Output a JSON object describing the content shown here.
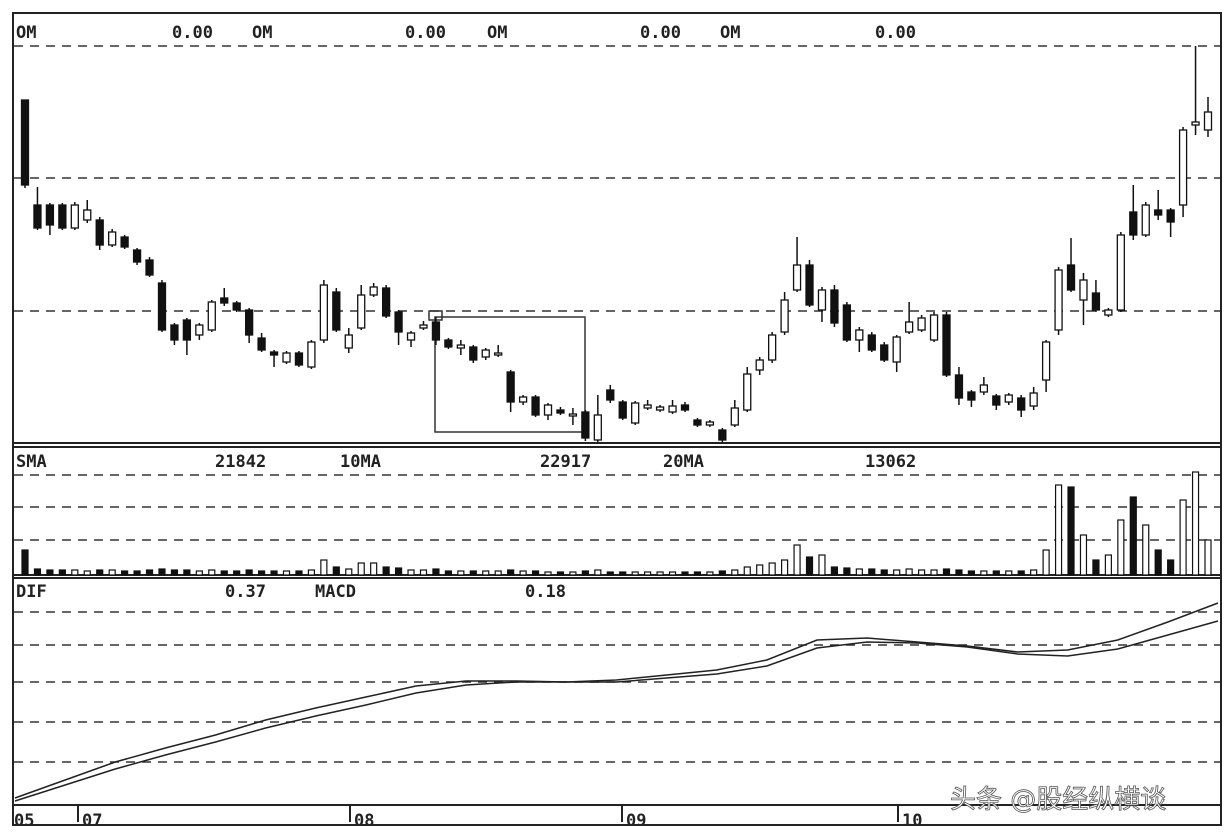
{
  "chart_data": [
    {
      "type": "candlestick",
      "header": [
        "OM",
        "0.00",
        "OM",
        "0.00",
        "OM",
        "0.00",
        "OM",
        "0.00"
      ],
      "ylim": [
        0,
        429
      ],
      "open": [
        343,
        238,
        238,
        238,
        215,
        223,
        223,
        198,
        206,
        193,
        183,
        160,
        118,
        123,
        108,
        113,
        145,
        140,
        133,
        105,
        91,
        81,
        90,
        76,
        103,
        151,
        95,
        115,
        148,
        155,
        131,
        103,
        115,
        121,
        103,
        95,
        96,
        86,
        88,
        71,
        41,
        46,
        28,
        33,
        27,
        31,
        3,
        53,
        41,
        20,
        35,
        33,
        31,
        38,
        23,
        18,
        13,
        18,
        33,
        73,
        83,
        111,
        153,
        178,
        133,
        153,
        138,
        103,
        108,
        98,
        81,
        111,
        113,
        103,
        128,
        68,
        51,
        51,
        47,
        41,
        45,
        37,
        63,
        113,
        178,
        143,
        150,
        128,
        133,
        231,
        208,
        233,
        233,
        238,
        318,
        313
      ],
      "high": [
        343,
        256,
        240,
        240,
        241,
        243,
        226,
        214,
        208,
        195,
        186,
        163,
        120,
        125,
        120,
        143,
        155,
        142,
        135,
        110,
        93,
        92,
        92,
        103,
        163,
        155,
        115,
        158,
        160,
        158,
        133,
        112,
        122,
        126,
        105,
        103,
        98,
        95,
        98,
        73,
        48,
        48,
        40,
        36,
        35,
        33,
        48,
        58,
        43,
        42,
        43,
        38,
        43,
        41,
        25,
        23,
        15,
        43,
        76,
        86,
        111,
        151,
        206,
        183,
        156,
        158,
        141,
        116,
        111,
        101,
        108,
        141,
        128,
        131,
        131,
        76,
        53,
        66,
        49,
        50,
        48,
        56,
        103,
        176,
        205,
        170,
        163,
        135,
        211,
        258,
        241,
        253,
        235,
        316,
        397,
        346
      ],
      "low": [
        255,
        213,
        208,
        213,
        213,
        220,
        193,
        196,
        194,
        178,
        166,
        111,
        98,
        88,
        103,
        111,
        137,
        131,
        100,
        91,
        76,
        79,
        76,
        74,
        100,
        111,
        90,
        113,
        146,
        125,
        98,
        96,
        113,
        98,
        94,
        88,
        80,
        83,
        86,
        31,
        38,
        26,
        23,
        28,
        18,
        2,
        1,
        40,
        23,
        18,
        33,
        31,
        29,
        31,
        16,
        16,
        1,
        16,
        31,
        68,
        80,
        108,
        151,
        136,
        121,
        116,
        101,
        91,
        91,
        81,
        71,
        109,
        111,
        101,
        66,
        38,
        36,
        48,
        33,
        38,
        26,
        33,
        51,
        108,
        151,
        118,
        131,
        126,
        131,
        203,
        206,
        223,
        206,
        226,
        308,
        306
      ],
      "close": [
        258,
        215,
        218,
        215,
        238,
        233,
        198,
        211,
        196,
        181,
        168,
        113,
        103,
        103,
        118,
        141,
        140,
        133,
        108,
        93,
        88,
        90,
        78,
        101,
        158,
        113,
        108,
        148,
        156,
        127,
        111,
        110,
        118,
        103,
        96,
        98,
        83,
        93,
        90,
        41,
        46,
        28,
        38,
        30,
        29,
        5,
        28,
        43,
        25,
        40,
        38,
        36,
        37,
        33,
        18,
        21,
        3,
        35,
        69,
        83,
        108,
        143,
        178,
        138,
        153,
        120,
        103,
        113,
        93,
        83,
        106,
        121,
        125,
        128,
        68,
        45,
        43,
        58,
        38,
        48,
        33,
        50,
        101,
        173,
        153,
        163,
        133,
        133,
        208,
        208,
        238,
        228,
        221,
        313,
        321,
        331
      ]
    },
    {
      "type": "bar",
      "header": [
        "SMA",
        "21842",
        "10MA",
        "22917",
        "20MA",
        "13062"
      ],
      "ylim": [
        0,
        130
      ],
      "values": [
        25,
        6,
        5,
        5,
        5,
        4,
        5,
        5,
        4,
        4,
        5,
        6,
        5,
        5,
        4,
        5,
        4,
        4,
        5,
        4,
        4,
        4,
        4,
        5,
        15,
        8,
        6,
        12,
        12,
        8,
        7,
        5,
        5,
        6,
        4,
        4,
        4,
        4,
        4,
        5,
        4,
        4,
        3,
        3,
        3,
        4,
        5,
        3,
        3,
        3,
        3,
        3,
        3,
        3,
        3,
        3,
        4,
        5,
        8,
        10,
        12,
        15,
        30,
        18,
        20,
        8,
        7,
        6,
        6,
        5,
        5,
        6,
        5,
        5,
        6,
        5,
        4,
        4,
        4,
        4,
        4,
        5,
        25,
        90,
        88,
        40,
        15,
        20,
        55,
        78,
        50,
        25,
        15,
        75,
        103,
        35
      ]
    },
    {
      "type": "line",
      "header": [
        "DIF",
        "0.37",
        "MACD",
        "0.18"
      ],
      "ylim": [
        0,
        227
      ],
      "series": [
        {
          "name": "DIF",
          "color": "#222222",
          "values": [
            7,
            25,
            43,
            57,
            70,
            85,
            97,
            108,
            119,
            124,
            124,
            123,
            125,
            130,
            135,
            145,
            165,
            167,
            163,
            159,
            153,
            155,
            165,
            183,
            202
          ]
        },
        {
          "name": "MACD",
          "color": "#222222",
          "values": [
            4,
            20,
            36,
            50,
            63,
            77,
            89,
            100,
            112,
            120,
            123,
            123,
            123,
            127,
            131,
            139,
            157,
            163,
            162,
            158,
            151,
            149,
            156,
            170,
            184
          ]
        }
      ]
    }
  ],
  "x_labels": [
    "05",
    "07",
    "08",
    "09",
    "10"
  ],
  "watermark": "头条 @股经纵横谈"
}
